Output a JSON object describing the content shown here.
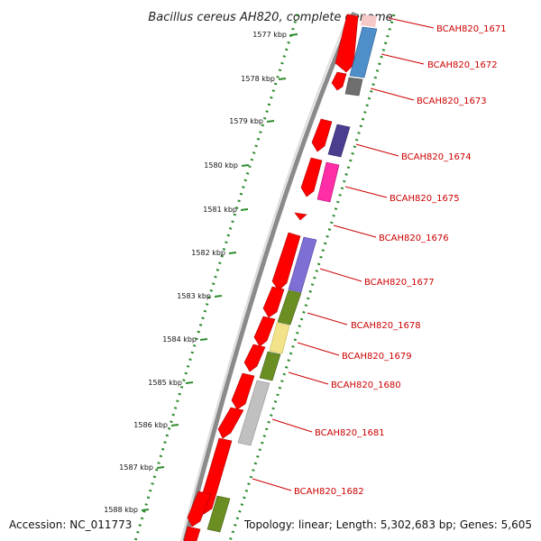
{
  "title": "Bacillus cereus AH820, complete genome",
  "footer": {
    "accession": "Accession: NC_011773",
    "summary": "Topology: linear; Length: 5,302,683 bp; Genes: 5,605"
  },
  "ruler_labels": [
    "1577 kbp",
    "1578 kbp",
    "1579 kbp",
    "1580 kbp",
    "1581 kbp",
    "1582 kbp",
    "1583 kbp",
    "1584 kbp",
    "1585 kbp",
    "1586 kbp",
    "1587 kbp",
    "1588 kbp"
  ],
  "gene_labels": [
    "BCAH820_1671",
    "BCAH820_1672",
    "BCAH820_1673",
    "BCAH820_1674",
    "BCAH820_1675",
    "BCAH820_1676",
    "BCAH820_1677",
    "BCAH820_1678",
    "BCAH820_1679",
    "BCAH820_1680",
    "BCAH820_1681",
    "BCAH820_1682"
  ],
  "colors": {
    "gene_red": "#ff0000",
    "backbone": "#888888",
    "ruler_dots": "#2e8b2e",
    "label_red": "#cc0000",
    "feature_colors": [
      "#4f8fc9",
      "#6e6e6e",
      "#4b3e8f",
      "#ff2ea6",
      "#7d6fd3",
      "#6b8e23",
      "#f2e38a",
      "#6b8e23",
      "#c0c0c0",
      "#6b8e23"
    ]
  }
}
